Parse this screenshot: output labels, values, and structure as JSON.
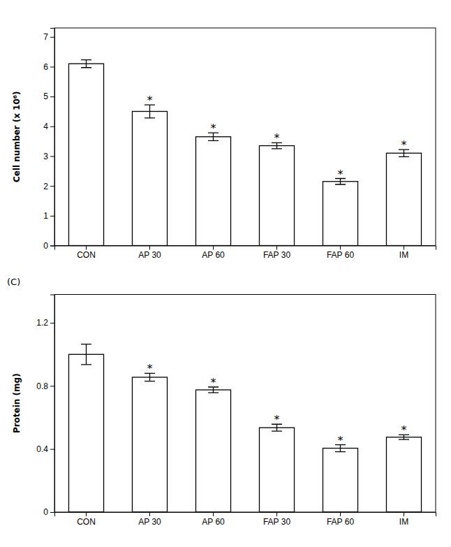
{
  "chart_data": [
    {
      "type": "bar",
      "categories": [
        "CON",
        "AP 30",
        "AP 60",
        "FAP 30",
        "FAP 60",
        "IM"
      ],
      "values": [
        6.1,
        4.5,
        3.65,
        3.35,
        2.15,
        3.1
      ],
      "errors": [
        0.13,
        0.22,
        0.13,
        0.1,
        0.1,
        0.12
      ],
      "annotations": [
        null,
        "*",
        "*",
        "*",
        "*",
        "*"
      ],
      "ylabel": "Cell number (x 10⁶)",
      "ylim": [
        0,
        7.3
      ],
      "yticks": [
        0,
        1,
        2,
        3,
        4,
        5,
        6,
        7
      ],
      "color": "#ffffff",
      "grid": false
    },
    {
      "type": "bar",
      "title": "(C)",
      "categories": [
        "CON",
        "AP 30",
        "AP 60",
        "FAP 30",
        "FAP 60",
        "IM"
      ],
      "values": [
        1.0,
        0.855,
        0.775,
        0.535,
        0.405,
        0.475
      ],
      "errors": [
        0.065,
        0.025,
        0.018,
        0.022,
        0.022,
        0.015
      ],
      "annotations": [
        null,
        "*",
        "*",
        "*",
        "*",
        "*"
      ],
      "ylabel": "Protein (mg)",
      "ylim": [
        0,
        1.38
      ],
      "yticks": [
        0,
        0.4,
        0.8,
        1.2
      ],
      "color": "#ffffff",
      "grid": false
    }
  ]
}
